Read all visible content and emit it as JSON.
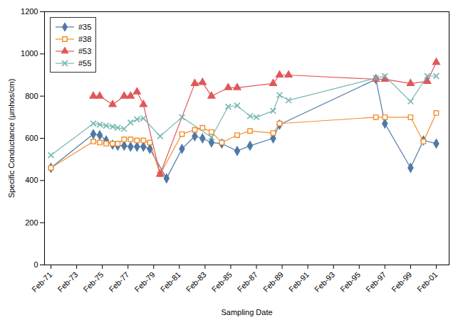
{
  "chart_data": {
    "type": "line",
    "xlabel": "Sampling Date",
    "ylabel": "Specific Conductance (μmhos/cm)",
    "xlim": [
      1970.5,
      2002
    ],
    "xticks": [
      {
        "value": 1971,
        "label": "Feb-71"
      },
      {
        "value": 1973,
        "label": "Feb-73"
      },
      {
        "value": 1975,
        "label": "Feb-75"
      },
      {
        "value": 1977,
        "label": "Feb-77"
      },
      {
        "value": 1979,
        "label": "Feb-79"
      },
      {
        "value": 1981,
        "label": "Feb-81"
      },
      {
        "value": 1983,
        "label": "Feb-83"
      },
      {
        "value": 1985,
        "label": "Feb-85"
      },
      {
        "value": 1987,
        "label": "Feb-87"
      },
      {
        "value": 1989,
        "label": "Feb-89"
      },
      {
        "value": 1991,
        "label": "Feb-91"
      },
      {
        "value": 1993,
        "label": "Feb-93"
      },
      {
        "value": 1995,
        "label": "Feb-95"
      },
      {
        "value": 1997,
        "label": "Feb-97"
      },
      {
        "value": 1999,
        "label": "Feb-99"
      },
      {
        "value": 2001,
        "label": "Feb-01"
      }
    ],
    "ylim": [
      0,
      1200
    ],
    "yticks": [
      0,
      200,
      400,
      600,
      800,
      1000,
      1200
    ],
    "grid": false,
    "legend": "upper left",
    "series": [
      {
        "name": "#35",
        "marker": "diamond",
        "x": [
          1971,
          1974.3,
          1974.8,
          1975.3,
          1975.8,
          1976.2,
          1976.7,
          1977.2,
          1977.7,
          1978.2,
          1978.7,
          1980.0,
          1981.2,
          1982.2,
          1982.8,
          1983.5,
          1984.3,
          1985.5,
          1986.5,
          1988.3,
          1988.8,
          1996.3,
          1997.0,
          1999.0,
          2000.0,
          2001.0
        ],
        "values": [
          460,
          620,
          615,
          590,
          570,
          565,
          565,
          560,
          560,
          560,
          550,
          410,
          550,
          610,
          600,
          580,
          575,
          540,
          565,
          600,
          665,
          880,
          670,
          460,
          590,
          575
        ]
      },
      {
        "name": "#38",
        "marker": "square-open",
        "x": [
          1971,
          1974.3,
          1974.8,
          1975.3,
          1975.8,
          1976.2,
          1976.7,
          1977.2,
          1977.7,
          1978.2,
          1978.7,
          1979.5,
          1981.2,
          1982.2,
          1982.8,
          1983.5,
          1984.3,
          1985.5,
          1986.5,
          1988.3,
          1988.8,
          1996.3,
          1997.0,
          1999.0,
          2000.0,
          2001.0
        ],
        "values": [
          460,
          585,
          580,
          575,
          575,
          575,
          595,
          595,
          590,
          590,
          580,
          430,
          620,
          640,
          650,
          630,
          580,
          615,
          635,
          625,
          670,
          700,
          700,
          700,
          585,
          720
        ]
      },
      {
        "name": "#53",
        "marker": "triangle",
        "x": [
          1974.3,
          1974.8,
          1975.8,
          1976.7,
          1977.2,
          1977.7,
          1978.2,
          1979.5,
          1982.2,
          1982.8,
          1983.5,
          1984.8,
          1985.5,
          1988.3,
          1988.8,
          1989.5,
          1996.3,
          1997.0,
          1999.0,
          2000.3,
          2001.0
        ],
        "values": [
          800,
          800,
          760,
          800,
          800,
          820,
          760,
          430,
          860,
          865,
          800,
          840,
          840,
          860,
          900,
          900,
          880,
          880,
          860,
          870,
          960
        ]
      },
      {
        "name": "#55",
        "marker": "x",
        "x": [
          1971,
          1974.3,
          1974.8,
          1975.3,
          1975.8,
          1976.2,
          1976.7,
          1977.2,
          1977.7,
          1978.2,
          1979.5,
          1981.2,
          1983.5,
          1984.8,
          1985.5,
          1986.5,
          1987.0,
          1988.3,
          1988.8,
          1989.5,
          1996.3,
          1997.0,
          1999.0,
          2000.3,
          2001.0
        ],
        "values": [
          520,
          670,
          665,
          660,
          655,
          650,
          645,
          675,
          690,
          695,
          610,
          700,
          605,
          750,
          755,
          705,
          700,
          730,
          805,
          780,
          885,
          895,
          775,
          895,
          895
        ]
      }
    ]
  }
}
